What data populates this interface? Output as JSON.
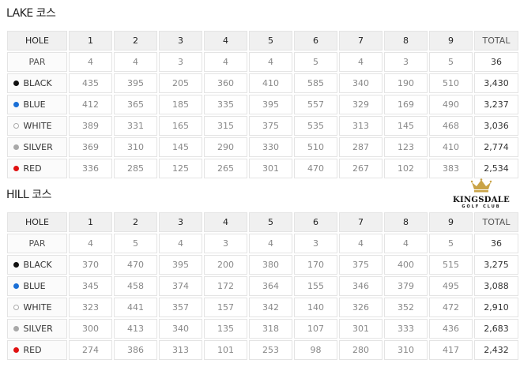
{
  "tee_colors": {
    "BLACK": "#111111",
    "BLUE": "#1a6fd6",
    "WHITE": "#ffffff",
    "SILVER": "#a8a8a8",
    "RED": "#e01010"
  },
  "logo": {
    "name": "KINGSDALE",
    "sub": "GOLF CLUB",
    "crown_color": "#c9a347"
  },
  "courses": [
    {
      "title": "LAKE 코스",
      "header": [
        "HOLE",
        "1",
        "2",
        "3",
        "4",
        "5",
        "6",
        "7",
        "8",
        "9",
        "TOTAL"
      ],
      "par": {
        "label": "PAR",
        "values": [
          "4",
          "4",
          "3",
          "4",
          "4",
          "5",
          "4",
          "3",
          "5"
        ],
        "total": "36"
      },
      "tees": [
        {
          "label": "BLACK",
          "values": [
            "435",
            "395",
            "205",
            "360",
            "410",
            "585",
            "340",
            "190",
            "510"
          ],
          "total": "3,430"
        },
        {
          "label": "BLUE",
          "values": [
            "412",
            "365",
            "185",
            "335",
            "395",
            "557",
            "329",
            "169",
            "490"
          ],
          "total": "3,237"
        },
        {
          "label": "WHITE",
          "values": [
            "389",
            "331",
            "165",
            "315",
            "375",
            "535",
            "313",
            "145",
            "468"
          ],
          "total": "3,036"
        },
        {
          "label": "SILVER",
          "values": [
            "369",
            "310",
            "145",
            "290",
            "330",
            "510",
            "287",
            "123",
            "410"
          ],
          "total": "2,774"
        },
        {
          "label": "RED",
          "values": [
            "336",
            "285",
            "125",
            "265",
            "301",
            "470",
            "267",
            "102",
            "383"
          ],
          "total": "2,534"
        }
      ]
    },
    {
      "title": "HILL 코스",
      "header": [
        "HOLE",
        "1",
        "2",
        "3",
        "4",
        "5",
        "6",
        "7",
        "8",
        "9",
        "TOTAL"
      ],
      "par": {
        "label": "PAR",
        "values": [
          "4",
          "5",
          "4",
          "3",
          "4",
          "3",
          "4",
          "4",
          "5"
        ],
        "total": "36"
      },
      "tees": [
        {
          "label": "BLACK",
          "values": [
            "370",
            "470",
            "395",
            "200",
            "380",
            "170",
            "375",
            "400",
            "515"
          ],
          "total": "3,275"
        },
        {
          "label": "BLUE",
          "values": [
            "345",
            "458",
            "374",
            "172",
            "364",
            "155",
            "346",
            "379",
            "495"
          ],
          "total": "3,088"
        },
        {
          "label": "WHITE",
          "values": [
            "323",
            "441",
            "357",
            "157",
            "342",
            "140",
            "326",
            "352",
            "472"
          ],
          "total": "2,910"
        },
        {
          "label": "SILVER",
          "values": [
            "300",
            "413",
            "340",
            "135",
            "318",
            "107",
            "301",
            "333",
            "436"
          ],
          "total": "2,683"
        },
        {
          "label": "RED",
          "values": [
            "274",
            "386",
            "313",
            "101",
            "253",
            "98",
            "280",
            "310",
            "417"
          ],
          "total": "2,432"
        }
      ]
    }
  ]
}
